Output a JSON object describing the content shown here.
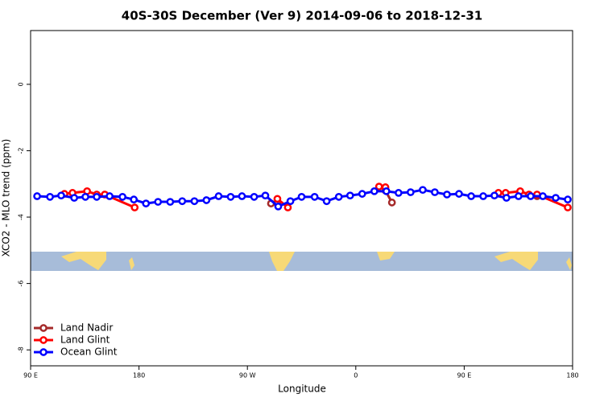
{
  "chart_data": {
    "type": "line",
    "title": "40S-30S December (Ver 9)   2014-09-06 to 2018-12-31",
    "x_label": "Longitude",
    "y_label": "XCO2 - MLO trend (ppm)",
    "xlim": [
      90,
      540
    ],
    "ylim": [
      -8.48,
      1.62
    ],
    "xticks": [
      {
        "value": 90,
        "label": "90 E"
      },
      {
        "value": 180,
        "label": "180"
      },
      {
        "value": 270,
        "label": "90 W"
      },
      {
        "value": 360,
        "label": "0"
      },
      {
        "value": 450,
        "label": "90 E"
      },
      {
        "value": 540,
        "label": "180"
      }
    ],
    "yticks": [
      0,
      -2,
      -4,
      -6,
      -8
    ],
    "legend": "bottom-left",
    "series": [
      {
        "name": "Land Nadir",
        "color": "#a52a2a",
        "x": [
          289.6,
          294.9,
          null,
          384.6,
          390,
          null,
          510.5
        ],
        "values": [
          -3.59,
          -3.57,
          null,
          -3.2,
          -3.56,
          null,
          -3.37
        ]
      },
      {
        "name": "Land Glint",
        "color": "#ff0000",
        "x": [
          118.1,
          124.8,
          136.9,
          144.9,
          151.6,
          176.4,
          null,
          294.9,
          303.6,
          null,
          379.3,
          384.6,
          null,
          478.4,
          484.4,
          496.5,
          503.8,
          510.5,
          536
        ],
        "values": [
          -3.3,
          -3.27,
          -3.22,
          -3.32,
          -3.32,
          -3.71,
          null,
          -3.45,
          -3.71,
          null,
          -3.08,
          -3.1,
          null,
          -3.27,
          -3.27,
          -3.22,
          -3.32,
          -3.32,
          -3.71
        ]
      },
      {
        "name": "Ocean Glint",
        "color": "#0000ff",
        "x": [
          95.4,
          106.1,
          115.4,
          126.2,
          135.5,
          144.9,
          155.6,
          166.3,
          175.7,
          185.8,
          195.8,
          205.9,
          215.9,
          226,
          236,
          246.1,
          256.1,
          265.5,
          275.6,
          284.9,
          295.6,
          305.7,
          315,
          325.8,
          335.8,
          345.9,
          355.3,
          365.3,
          375.4,
          385.4,
          395.5,
          405.5,
          415.6,
          425.6,
          435.7,
          445.7,
          455.8,
          465.8,
          475.1,
          485.1,
          495.1,
          505.2,
          515.3,
          526,
          536
        ],
        "values": [
          -3.37,
          -3.39,
          -3.35,
          -3.42,
          -3.39,
          -3.39,
          -3.37,
          -3.39,
          -3.47,
          -3.59,
          -3.54,
          -3.54,
          -3.52,
          -3.52,
          -3.49,
          -3.37,
          -3.39,
          -3.37,
          -3.39,
          -3.35,
          -3.68,
          -3.52,
          -3.39,
          -3.39,
          -3.52,
          -3.39,
          -3.35,
          -3.3,
          -3.22,
          -3.22,
          -3.27,
          -3.25,
          -3.18,
          -3.25,
          -3.32,
          -3.3,
          -3.37,
          -3.37,
          -3.35,
          -3.42,
          -3.37,
          -3.37,
          -3.37,
          -3.42,
          -3.47
        ]
      }
    ]
  }
}
